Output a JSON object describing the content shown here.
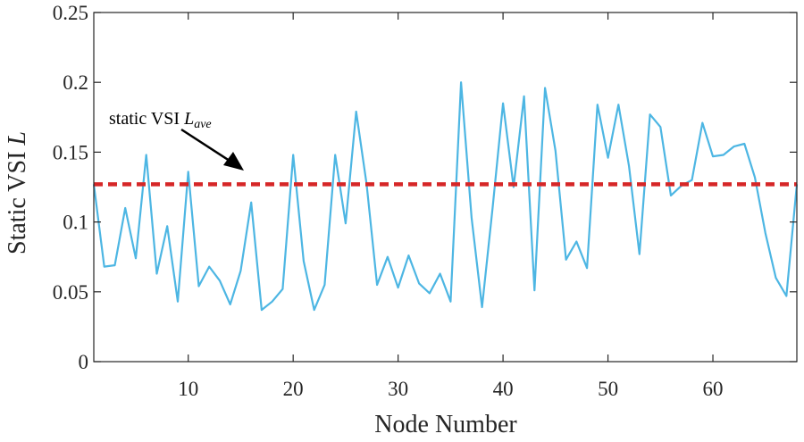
{
  "chart_data": {
    "type": "line",
    "xlabel": "Node Number",
    "ylabel_main": "Static VSI ",
    "ylabel_italic": "L",
    "xlim": [
      1,
      68
    ],
    "ylim": [
      0,
      0.25
    ],
    "xticks": [
      10,
      20,
      30,
      40,
      50,
      60
    ],
    "yticks": [
      0,
      0.05,
      0.1,
      0.15,
      0.2,
      0.25
    ],
    "ytick_labels": [
      "0",
      "0.05",
      "0.1",
      "0.15",
      "0.2",
      "0.25"
    ],
    "grid": false,
    "series": [
      {
        "color": "#4db6e3",
        "x": [
          1,
          2,
          3,
          4,
          5,
          6,
          7,
          8,
          9,
          10,
          11,
          12,
          13,
          14,
          15,
          16,
          17,
          18,
          19,
          20,
          21,
          22,
          23,
          24,
          25,
          26,
          27,
          28,
          29,
          30,
          31,
          32,
          33,
          34,
          35,
          36,
          37,
          38,
          39,
          40,
          41,
          42,
          43,
          44,
          45,
          46,
          47,
          48,
          49,
          50,
          51,
          52,
          53,
          54,
          55,
          56,
          57,
          58,
          59,
          60,
          61,
          62,
          63,
          64,
          65,
          66,
          67,
          68
        ],
        "values": [
          0.127,
          0.068,
          0.069,
          0.11,
          0.074,
          0.148,
          0.063,
          0.097,
          0.043,
          0.136,
          0.054,
          0.068,
          0.058,
          0.041,
          0.065,
          0.114,
          0.037,
          0.043,
          0.052,
          0.148,
          0.072,
          0.037,
          0.055,
          0.148,
          0.099,
          0.179,
          0.127,
          0.055,
          0.075,
          0.053,
          0.076,
          0.056,
          0.049,
          0.063,
          0.043,
          0.2,
          0.103,
          0.039,
          0.11,
          0.185,
          0.125,
          0.19,
          0.051,
          0.196,
          0.151,
          0.073,
          0.086,
          0.067,
          0.184,
          0.146,
          0.184,
          0.14,
          0.077,
          0.177,
          0.168,
          0.119,
          0.126,
          0.13,
          0.171,
          0.147,
          0.148,
          0.154,
          0.156,
          0.132,
          0.092,
          0.06,
          0.047,
          0.127
        ]
      }
    ],
    "reference_line": {
      "y": 0.127,
      "color": "#d62728",
      "style": "dashed"
    },
    "annotation": {
      "text_main": "static VSI ",
      "text_italic": "L",
      "text_sub": "ave"
    }
  }
}
